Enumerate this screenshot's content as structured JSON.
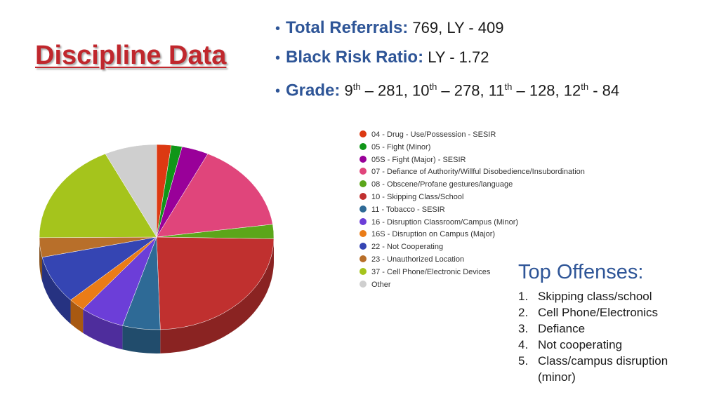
{
  "slide": {
    "title": "Discipline Data",
    "bullets": [
      {
        "label": "Total Referrals:",
        "text": " 769, LY - 409"
      },
      {
        "label": "Black Risk Ratio:",
        "text": " LY - 1.72"
      },
      {
        "label": "Grade:",
        "parts": [
          " 9",
          "th",
          " – 281, 10",
          "th",
          " – 278, 11",
          "th",
          " – 128, 12",
          "th",
          " - 84"
        ]
      }
    ],
    "top_offenses": {
      "heading": "Top Offenses:",
      "items": [
        {
          "num": "1.",
          "text": "Skipping class/school"
        },
        {
          "num": "2.",
          "text": "Cell Phone/Electronics"
        },
        {
          "num": "3.",
          "text": "Defiance"
        },
        {
          "num": "4.",
          "text": "Not cooperating"
        },
        {
          "num": "5.",
          "text": "Class/campus disruption (minor)"
        }
      ]
    }
  },
  "chart_data": {
    "type": "pie",
    "style": "3d",
    "legend_position": "right",
    "categories": [
      "04 - Drug - Use/Possession - SESIR",
      "05 - Fight (Minor)",
      "05S - Fight (Major) - SESIR",
      "07 - Defiance of Authority/Willful Disobedience/Insubordination",
      "08 - Obscene/Profane gestures/language",
      "10 - Skipping Class/School",
      "11 - Tobacco - SESIR",
      "16 - Disruption Classroom/Campus (Minor)",
      "16S - Disruption on Campus (Major)",
      "22 - Not Cooperating",
      "23 - Unauthorized Location",
      "37 - Cell Phone/Electronic Devices",
      "Other"
    ],
    "values": [
      2.0,
      1.5,
      3.7,
      15.6,
      2.5,
      24.2,
      5.2,
      6.1,
      2.3,
      8.4,
      3.4,
      17.9,
      7.2
    ],
    "unit": "percent (estimated)",
    "colors": [
      "#dc3912",
      "#109618",
      "#990099",
      "#e0457b",
      "#5ba61a",
      "#c0302f",
      "#2e6a96",
      "#6c3ed8",
      "#ea7c17",
      "#3545b3",
      "#b86f2a",
      "#a5c41c",
      "#cfcfcf"
    ]
  }
}
